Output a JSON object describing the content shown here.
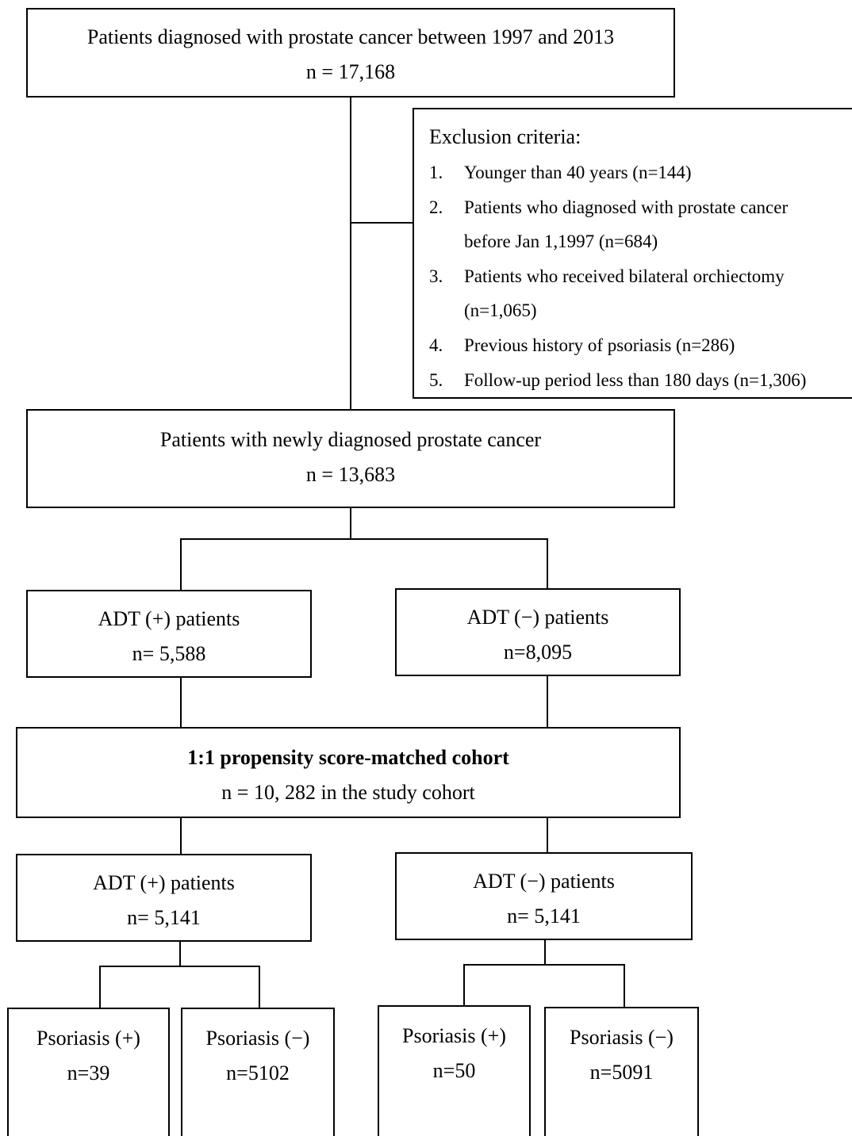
{
  "top": {
    "title": "Patients diagnosed with prostate cancer between 1997 and 2013",
    "count": "n = 17,168"
  },
  "exclusion": {
    "title": "Exclusion criteria:",
    "items": [
      {
        "num": "1.",
        "text": "Younger than 40 years (n=144)",
        "cont": ""
      },
      {
        "num": "2.",
        "text": "Patients who diagnosed with prostate cancer",
        "cont": "before Jan 1,1997 (n=684)"
      },
      {
        "num": "3.",
        "text": "Patients who received bilateral orchiectomy",
        "cont": "(n=1,065)"
      },
      {
        "num": "4.",
        "text": "Previous history of psoriasis (n=286)",
        "cont": ""
      },
      {
        "num": "5.",
        "text": "Follow-up period less than 180 days (n=1,306)",
        "cont": ""
      }
    ]
  },
  "newly": {
    "title": "Patients with newly diagnosed prostate cancer",
    "count": "n = 13,683"
  },
  "adt_pos_1": {
    "title": "ADT (+) patients",
    "count": "n= 5,588"
  },
  "adt_neg_1": {
    "title": "ADT (−) patients",
    "count": "n=8,095"
  },
  "matched": {
    "title": "1:1 propensity score-matched cohort",
    "count": "n = 10, 282 in the study cohort"
  },
  "adt_pos_2": {
    "title": "ADT (+) patients",
    "count": "n= 5,141"
  },
  "adt_neg_2": {
    "title": "ADT (−) patients",
    "count": "n= 5,141"
  },
  "leaves": {
    "pos_psor_pos": {
      "title": "Psoriasis (+)",
      "count": "n=39"
    },
    "pos_psor_neg": {
      "title": "Psoriasis (−)",
      "count": "n=5102"
    },
    "neg_psor_pos": {
      "title": "Psoriasis (+)",
      "count": "n=50"
    },
    "neg_psor_neg": {
      "title": "Psoriasis (−)",
      "count": "n=5091"
    }
  }
}
